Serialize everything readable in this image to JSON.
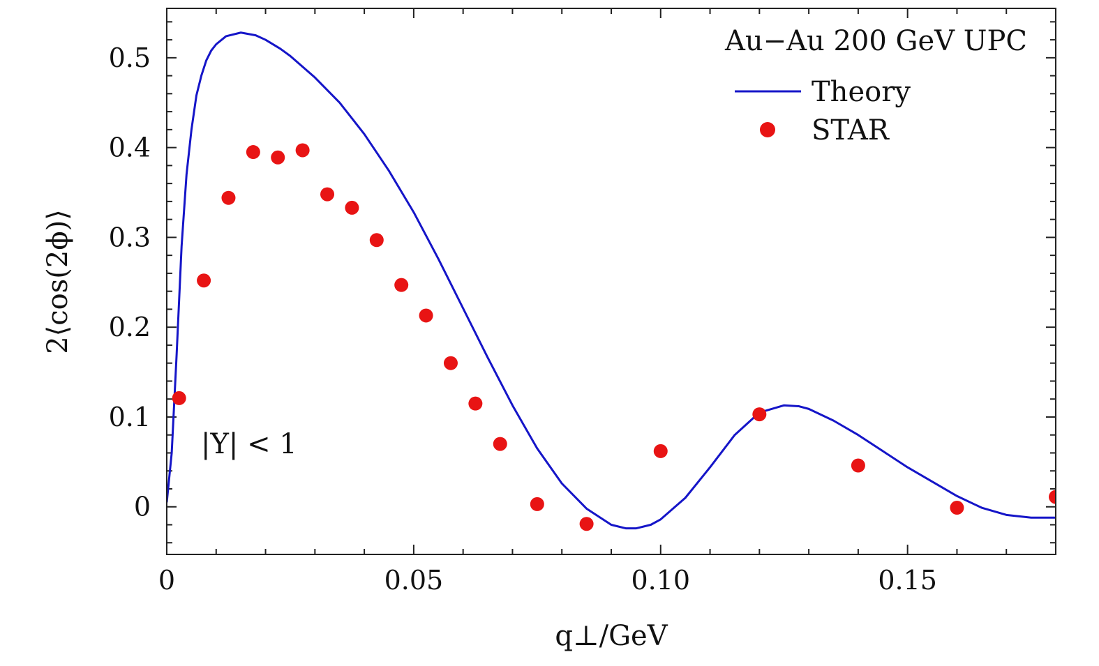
{
  "chart_data": {
    "type": "line",
    "title": "Au−Au 200 GeV UPC",
    "xlabel": "q⊥/GeV",
    "ylabel": "2⟨cos(2ϕ)⟩",
    "xlim": [
      0,
      0.18
    ],
    "ylim": [
      -0.053,
      0.555
    ],
    "x_ticks": [
      0,
      0.05,
      0.1,
      0.15
    ],
    "x_tick_labels": [
      "0",
      "0.05",
      "0.10",
      "0.15"
    ],
    "y_ticks": [
      0,
      0.1,
      0.2,
      0.3,
      0.4,
      0.5
    ],
    "y_tick_labels": [
      "0",
      "0.1",
      "0.2",
      "0.3",
      "0.4",
      "0.5"
    ],
    "annotation": "|Y| < 1",
    "legend_position": "top-right",
    "colors": {
      "theory": "#1515c8",
      "star": "#e81414"
    },
    "series": [
      {
        "name": "Theory",
        "kind": "line",
        "x": [
          0,
          0.001,
          0.002,
          0.003,
          0.004,
          0.005,
          0.006,
          0.007,
          0.008,
          0.009,
          0.01,
          0.012,
          0.015,
          0.018,
          0.02,
          0.023,
          0.025,
          0.03,
          0.035,
          0.04,
          0.045,
          0.05,
          0.055,
          0.06,
          0.065,
          0.07,
          0.075,
          0.08,
          0.085,
          0.09,
          0.093,
          0.095,
          0.098,
          0.1,
          0.105,
          0.11,
          0.115,
          0.12,
          0.125,
          0.128,
          0.13,
          0.135,
          0.14,
          0.145,
          0.15,
          0.155,
          0.16,
          0.165,
          0.17,
          0.175,
          0.18
        ],
        "y": [
          0.005,
          0.06,
          0.17,
          0.29,
          0.37,
          0.42,
          0.458,
          0.48,
          0.497,
          0.508,
          0.515,
          0.524,
          0.528,
          0.525,
          0.52,
          0.51,
          0.502,
          0.478,
          0.45,
          0.415,
          0.374,
          0.328,
          0.276,
          0.221,
          0.166,
          0.113,
          0.065,
          0.026,
          -0.002,
          -0.02,
          -0.024,
          -0.024,
          -0.02,
          -0.014,
          0.01,
          0.044,
          0.08,
          0.105,
          0.113,
          0.112,
          0.109,
          0.096,
          0.08,
          0.062,
          0.044,
          0.028,
          0.012,
          -0.001,
          -0.009,
          -0.012,
          -0.012
        ]
      },
      {
        "name": "STAR",
        "kind": "scatter",
        "x": [
          0.0025,
          0.0075,
          0.0125,
          0.0175,
          0.0225,
          0.0275,
          0.0325,
          0.0375,
          0.0425,
          0.0475,
          0.0525,
          0.0575,
          0.0625,
          0.0675,
          0.075,
          0.085,
          0.1,
          0.12,
          0.14,
          0.16,
          0.18
        ],
        "y": [
          0.121,
          0.252,
          0.344,
          0.395,
          0.389,
          0.397,
          0.348,
          0.333,
          0.297,
          0.247,
          0.213,
          0.16,
          0.115,
          0.07,
          0.003,
          -0.019,
          0.062,
          0.103,
          0.046,
          -0.001,
          0.011
        ]
      }
    ]
  }
}
